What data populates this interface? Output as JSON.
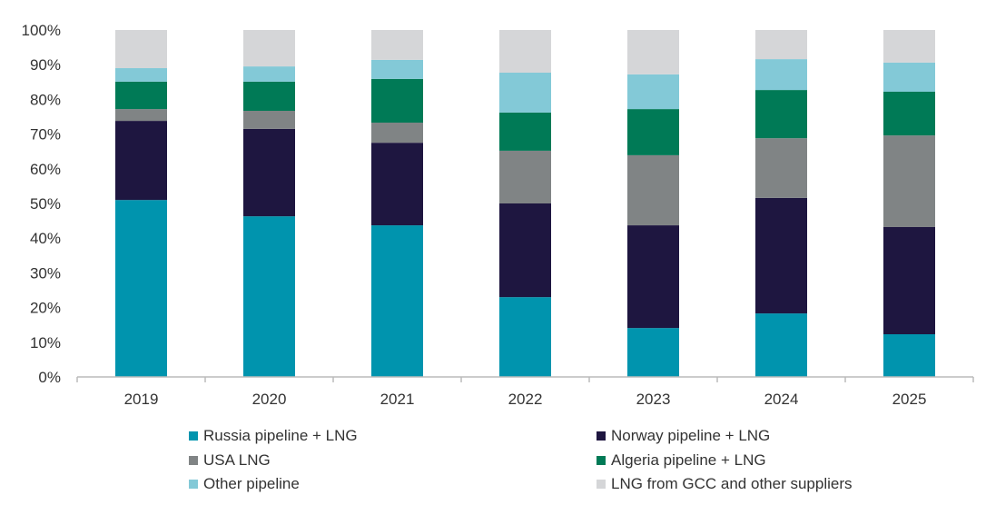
{
  "chart_data": {
    "type": "bar",
    "stacked": true,
    "categories": [
      "2019",
      "2020",
      "2021",
      "2022",
      "2023",
      "2024",
      "2025"
    ],
    "ylim": [
      0,
      100
    ],
    "yticks": [
      "0%",
      "10%",
      "20%",
      "30%",
      "40%",
      "50%",
      "60%",
      "70%",
      "80%",
      "90%",
      "100%"
    ],
    "legend_position": "bottom",
    "series": [
      {
        "name": "Russia pipeline + LNG",
        "color": "#0094ae",
        "values": [
          51.0,
          46.3,
          43.7,
          23.0,
          14.1,
          18.3,
          12.3
        ]
      },
      {
        "name": "Norway pipeline + LNG",
        "color": "#1e1640",
        "values": [
          22.8,
          25.2,
          23.8,
          27.0,
          29.6,
          33.3,
          30.9
        ]
      },
      {
        "name": "USA LNG",
        "color": "#808485",
        "values": [
          3.4,
          5.2,
          5.8,
          15.2,
          20.2,
          17.2,
          26.4
        ]
      },
      {
        "name": "Algeria pipeline + LNG",
        "color": "#007a56",
        "values": [
          7.9,
          8.4,
          12.6,
          11.0,
          13.3,
          13.9,
          12.6
        ]
      },
      {
        "name": "Other pipeline",
        "color": "#83c9d7",
        "values": [
          3.9,
          4.4,
          5.5,
          11.5,
          10.0,
          8.9,
          8.4
        ]
      },
      {
        "name": "LNG from GCC and other suppliers",
        "color": "#d5d6d8",
        "values": [
          11.0,
          10.5,
          8.6,
          12.3,
          12.8,
          8.4,
          9.4
        ]
      }
    ]
  }
}
